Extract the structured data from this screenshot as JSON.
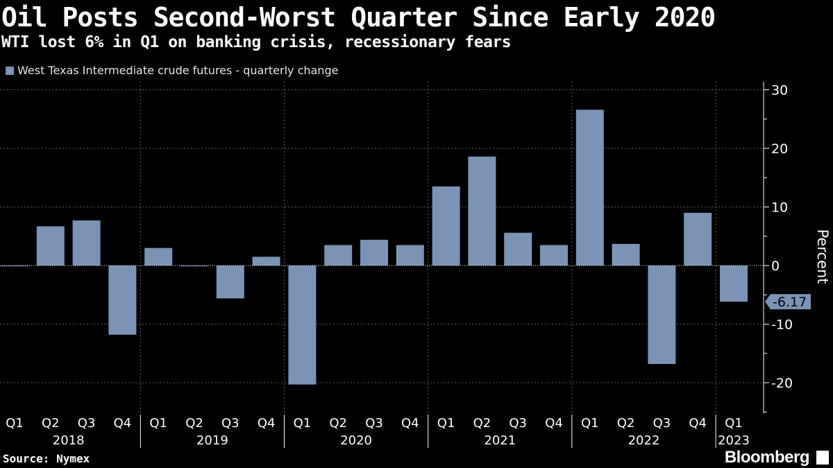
{
  "header": {
    "title": "Oil Posts Second-Worst Quarter Since Early 2020",
    "subtitle": "WTI lost 6% in Q1 on banking crisis, recessionary fears"
  },
  "footer": {
    "source": "Source: Nymex",
    "brand": "Bloomberg"
  },
  "colors": {
    "bar": "#7b93b5",
    "background": "#000000",
    "grid": "#8a8a8a",
    "text": "#ffffff"
  },
  "chart_data": {
    "type": "bar",
    "title": "Oil Posts Second-Worst Quarter Since Early 2020",
    "subtitle": "WTI lost 6% in Q1 on banking crisis, recessionary fears",
    "legend": [
      "West Texas Intermediate crude futures - quarterly change"
    ],
    "legend_placement": "top-left",
    "ylabel": "Percent",
    "y_axis_side": "right",
    "ylim": [
      -25,
      31
    ],
    "y_ticks": [
      30,
      20,
      10,
      0,
      -10,
      -20
    ],
    "grid": true,
    "categories": [
      "Q1",
      "Q2",
      "Q3",
      "Q4",
      "Q1",
      "Q2",
      "Q3",
      "Q4",
      "Q1",
      "Q2",
      "Q3",
      "Q4",
      "Q1",
      "Q2",
      "Q3",
      "Q4",
      "Q1",
      "Q2",
      "Q3",
      "Q4",
      "Q1"
    ],
    "years": [
      {
        "label": "2018",
        "quarters": 4
      },
      {
        "label": "2019",
        "quarters": 4
      },
      {
        "label": "2020",
        "quarters": 4
      },
      {
        "label": "2021",
        "quarters": 4
      },
      {
        "label": "2022",
        "quarters": 4
      },
      {
        "label": "2023",
        "quarters": 1
      }
    ],
    "series": [
      {
        "name": "West Texas Intermediate crude futures - quarterly change",
        "values": [
          -0.1,
          6.7,
          7.7,
          -11.8,
          3.0,
          -0.1,
          -5.6,
          1.5,
          -20.3,
          3.5,
          4.4,
          3.5,
          13.5,
          18.6,
          5.6,
          3.5,
          26.6,
          3.7,
          -16.8,
          9.0,
          -6.17
        ]
      }
    ],
    "last_value_label": "-6.17"
  }
}
